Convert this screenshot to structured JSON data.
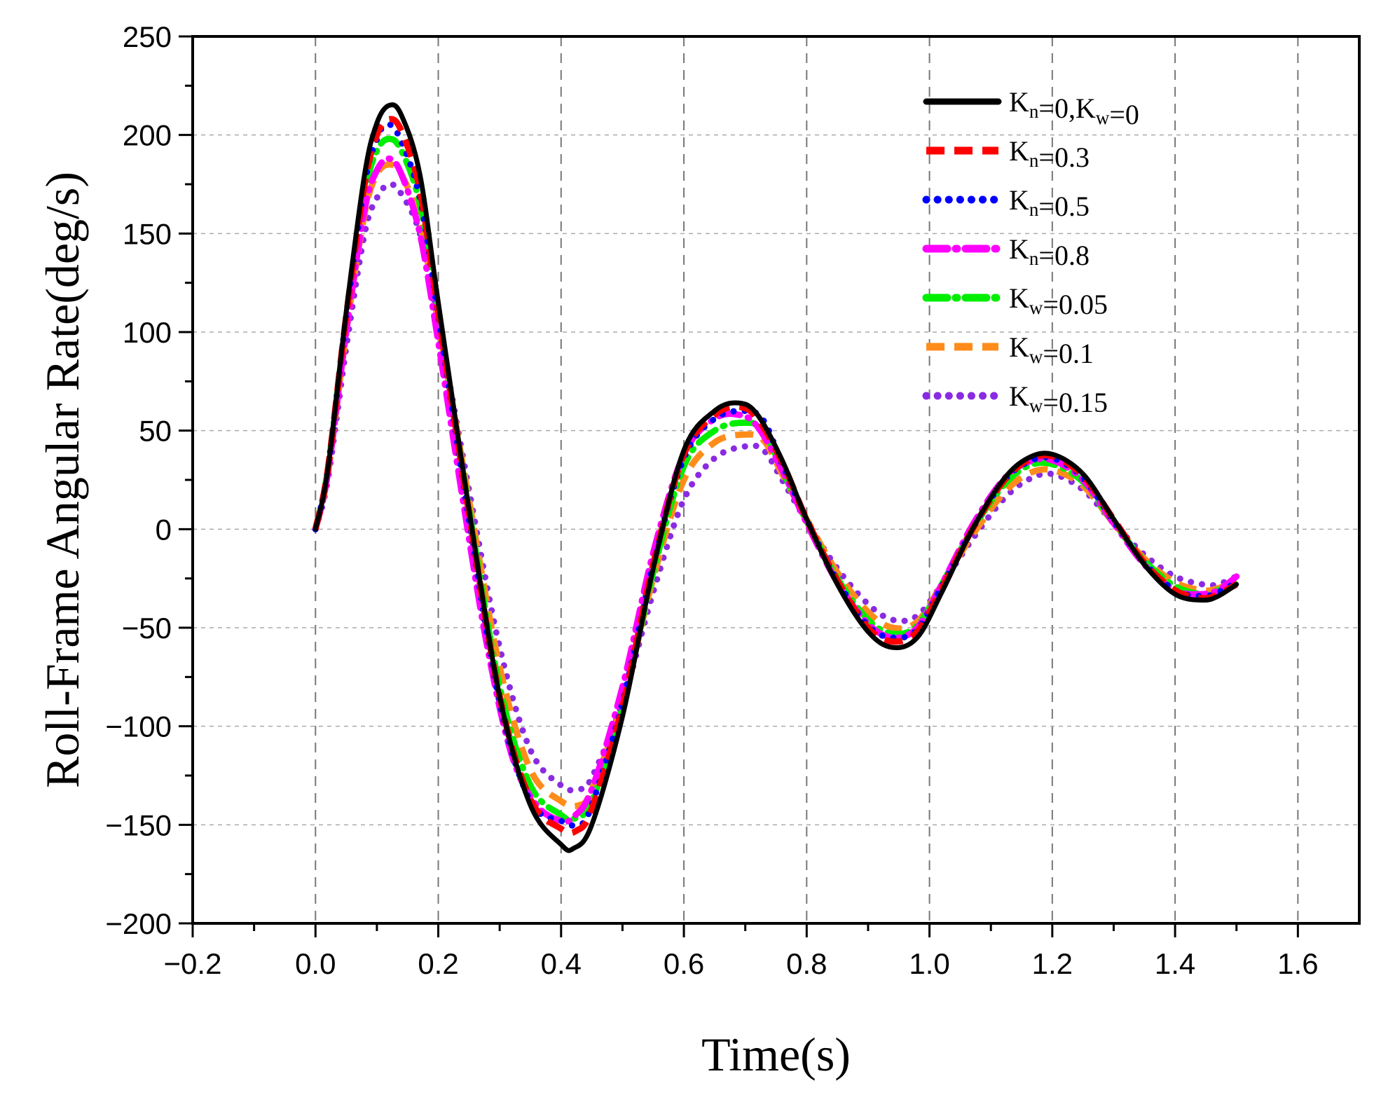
{
  "chart_data": {
    "type": "line",
    "title": "",
    "xlabel": "Time(s)",
    "ylabel": "Roll-Frame Angular Rate(deg/s)",
    "xlim": [
      -0.2,
      1.7
    ],
    "ylim": [
      -200,
      250
    ],
    "xticks": [
      -0.2,
      0.0,
      0.2,
      0.4,
      0.6,
      0.8,
      1.0,
      1.2,
      1.4,
      1.6
    ],
    "xtick_labels": [
      "−0.2",
      "0.0",
      "0.2",
      "0.4",
      "0.6",
      "0.8",
      "1.0",
      "1.2",
      "1.4",
      "1.6"
    ],
    "yticks": [
      -200,
      -150,
      -100,
      -50,
      0,
      50,
      100,
      150,
      200,
      250
    ],
    "ytick_labels": [
      "−200",
      "−150",
      "−100",
      "−50",
      "0",
      "50",
      "100",
      "150",
      "200",
      "250"
    ],
    "grid": true,
    "legend_position": "top-right",
    "series": [
      {
        "name": "Kn=0,Kw=0",
        "label_parts": [
          [
            "K",
            ""
          ],
          [
            "n",
            "sub"
          ],
          [
            "=0,K",
            ""
          ],
          [
            "w",
            "sub"
          ],
          [
            "=0",
            ""
          ]
        ],
        "color": "#000000",
        "style": "solid",
        "x": [
          0.0,
          0.02,
          0.05,
          0.08,
          0.1,
          0.12,
          0.14,
          0.17,
          0.2,
          0.25,
          0.3,
          0.35,
          0.4,
          0.42,
          0.45,
          0.5,
          0.55,
          0.6,
          0.65,
          0.69,
          0.72,
          0.76,
          0.8,
          0.85,
          0.9,
          0.94,
          0.98,
          1.02,
          1.07,
          1.12,
          1.16,
          1.2,
          1.25,
          1.3,
          1.35,
          1.4,
          1.445,
          1.47,
          1.5
        ],
        "y": [
          0,
          30,
          110,
          180,
          206,
          215,
          210,
          180,
          115,
          10,
          -85,
          -140,
          -160,
          -162,
          -150,
          -95,
          -20,
          40,
          60,
          64,
          58,
          35,
          5,
          -28,
          -52,
          -60,
          -55,
          -32,
          0,
          25,
          36,
          38,
          28,
          5,
          -18,
          -33,
          -36,
          -34,
          -28
        ]
      },
      {
        "name": "Kn=0.3",
        "label_parts": [
          [
            "K",
            ""
          ],
          [
            "n",
            "sub"
          ],
          [
            "=0.3",
            ""
          ]
        ],
        "color": "#ff0000",
        "style": "dash",
        "x": [
          0.0,
          0.02,
          0.05,
          0.08,
          0.1,
          0.12,
          0.14,
          0.17,
          0.2,
          0.25,
          0.3,
          0.35,
          0.4,
          0.425,
          0.45,
          0.5,
          0.55,
          0.6,
          0.65,
          0.69,
          0.72,
          0.76,
          0.8,
          0.85,
          0.9,
          0.94,
          0.98,
          1.02,
          1.07,
          1.12,
          1.16,
          1.2,
          1.25,
          1.3,
          1.35,
          1.4,
          1.445,
          1.47,
          1.5
        ],
        "y": [
          0,
          30,
          108,
          175,
          200,
          208,
          202,
          172,
          110,
          8,
          -85,
          -137,
          -152,
          -153,
          -142,
          -90,
          -18,
          38,
          58,
          62,
          56,
          34,
          5,
          -26,
          -50,
          -57,
          -52,
          -30,
          0,
          24,
          35,
          37,
          27,
          5,
          -17,
          -31,
          -35,
          -33,
          -28
        ]
      },
      {
        "name": "Kn=0.5",
        "label_parts": [
          [
            "K",
            ""
          ],
          [
            "n",
            "sub"
          ],
          [
            "=0.5",
            ""
          ]
        ],
        "color": "#0000ff",
        "style": "dot",
        "x": [
          0.0,
          0.02,
          0.05,
          0.08,
          0.1,
          0.115,
          0.135,
          0.17,
          0.2,
          0.25,
          0.3,
          0.35,
          0.4,
          0.43,
          0.45,
          0.5,
          0.55,
          0.6,
          0.65,
          0.7,
          0.73,
          0.76,
          0.8,
          0.85,
          0.9,
          0.94,
          0.98,
          1.02,
          1.07,
          1.12,
          1.16,
          1.2,
          1.25,
          1.3,
          1.35,
          1.4,
          1.445,
          1.47,
          1.5
        ],
        "y": [
          0,
          30,
          108,
          175,
          198,
          205,
          200,
          168,
          108,
          5,
          -88,
          -138,
          -148,
          -150,
          -140,
          -88,
          -18,
          36,
          56,
          60,
          55,
          33,
          5,
          -26,
          -49,
          -55,
          -51,
          -29,
          0,
          24,
          34,
          36,
          26,
          4,
          -17,
          -31,
          -34,
          -32,
          -27
        ]
      },
      {
        "name": "Kn=0.8",
        "label_parts": [
          [
            "K",
            ""
          ],
          [
            "n",
            "sub"
          ],
          [
            "=0.8",
            ""
          ]
        ],
        "color": "#ff00ff",
        "style": "dashdot",
        "x": [
          0.0,
          0.02,
          0.05,
          0.08,
          0.1,
          0.12,
          0.14,
          0.17,
          0.2,
          0.24,
          0.28,
          0.32,
          0.36,
          0.4,
          0.42,
          0.45,
          0.5,
          0.55,
          0.6,
          0.65,
          0.69,
          0.72,
          0.76,
          0.8,
          0.85,
          0.9,
          0.94,
          0.98,
          1.02,
          1.07,
          1.12,
          1.16,
          1.2,
          1.25,
          1.3,
          1.35,
          1.4,
          1.44,
          1.47,
          1.5
        ],
        "y": [
          0,
          28,
          100,
          162,
          182,
          188,
          180,
          150,
          95,
          15,
          -60,
          -115,
          -140,
          -148,
          -146,
          -132,
          -80,
          -12,
          38,
          56,
          58,
          52,
          30,
          3,
          -27,
          -48,
          -55,
          -50,
          -28,
          2,
          25,
          34,
          35,
          25,
          3,
          -18,
          -31,
          -33,
          -31,
          -24
        ]
      },
      {
        "name": "Kw=0.05",
        "label_parts": [
          [
            "K",
            ""
          ],
          [
            "w",
            "sub"
          ],
          [
            "=0.05",
            ""
          ]
        ],
        "color": "#00ee00",
        "style": "dashdot",
        "x": [
          0.0,
          0.02,
          0.05,
          0.08,
          0.1,
          0.12,
          0.14,
          0.17,
          0.2,
          0.25,
          0.3,
          0.35,
          0.4,
          0.42,
          0.45,
          0.5,
          0.55,
          0.6,
          0.65,
          0.7,
          0.73,
          0.76,
          0.8,
          0.85,
          0.9,
          0.94,
          0.98,
          1.02,
          1.07,
          1.12,
          1.16,
          1.2,
          1.25,
          1.3,
          1.35,
          1.4,
          1.445,
          1.47,
          1.5
        ],
        "y": [
          0,
          30,
          106,
          170,
          192,
          198,
          192,
          165,
          108,
          10,
          -80,
          -130,
          -145,
          -147,
          -138,
          -90,
          -22,
          32,
          50,
          54,
          50,
          30,
          4,
          -25,
          -46,
          -53,
          -49,
          -28,
          0,
          22,
          32,
          33,
          24,
          3,
          -16,
          -29,
          -33,
          -31,
          -27
        ]
      },
      {
        "name": "Kw=0.1",
        "label_parts": [
          [
            "K",
            ""
          ],
          [
            "w",
            "sub"
          ],
          [
            "=0.1",
            ""
          ]
        ],
        "color": "#ff8c1a",
        "style": "dash",
        "x": [
          0.0,
          0.02,
          0.05,
          0.08,
          0.1,
          0.12,
          0.14,
          0.17,
          0.2,
          0.25,
          0.3,
          0.35,
          0.4,
          0.43,
          0.45,
          0.5,
          0.55,
          0.6,
          0.65,
          0.7,
          0.73,
          0.76,
          0.8,
          0.85,
          0.9,
          0.94,
          0.98,
          1.02,
          1.07,
          1.12,
          1.16,
          1.2,
          1.25,
          1.3,
          1.35,
          1.4,
          1.445,
          1.47,
          1.5
        ],
        "y": [
          0,
          28,
          100,
          160,
          180,
          185,
          180,
          155,
          105,
          15,
          -70,
          -122,
          -138,
          -140,
          -132,
          -88,
          -25,
          25,
          44,
          48,
          45,
          28,
          5,
          -22,
          -42,
          -50,
          -47,
          -28,
          -3,
          18,
          28,
          30,
          22,
          3,
          -15,
          -27,
          -31,
          -30,
          -26
        ]
      },
      {
        "name": "Kw=0.15",
        "label_parts": [
          [
            "K",
            ""
          ],
          [
            "w",
            "sub"
          ],
          [
            "=0.15",
            ""
          ]
        ],
        "color": "#8a2be2",
        "style": "dot",
        "x": [
          0.0,
          0.02,
          0.05,
          0.08,
          0.1,
          0.12,
          0.14,
          0.17,
          0.2,
          0.25,
          0.3,
          0.35,
          0.4,
          0.43,
          0.45,
          0.5,
          0.55,
          0.6,
          0.65,
          0.7,
          0.73,
          0.76,
          0.8,
          0.85,
          0.9,
          0.94,
          0.98,
          1.02,
          1.07,
          1.12,
          1.16,
          1.2,
          1.25,
          1.3,
          1.35,
          1.4,
          1.445,
          1.47,
          1.5
        ],
        "y": [
          0,
          25,
          92,
          150,
          168,
          175,
          170,
          150,
          105,
          20,
          -60,
          -112,
          -130,
          -132,
          -126,
          -88,
          -32,
          15,
          36,
          42,
          40,
          25,
          4,
          -20,
          -38,
          -46,
          -44,
          -28,
          -5,
          15,
          25,
          28,
          20,
          3,
          -13,
          -24,
          -28,
          -28,
          -24
        ]
      }
    ]
  }
}
